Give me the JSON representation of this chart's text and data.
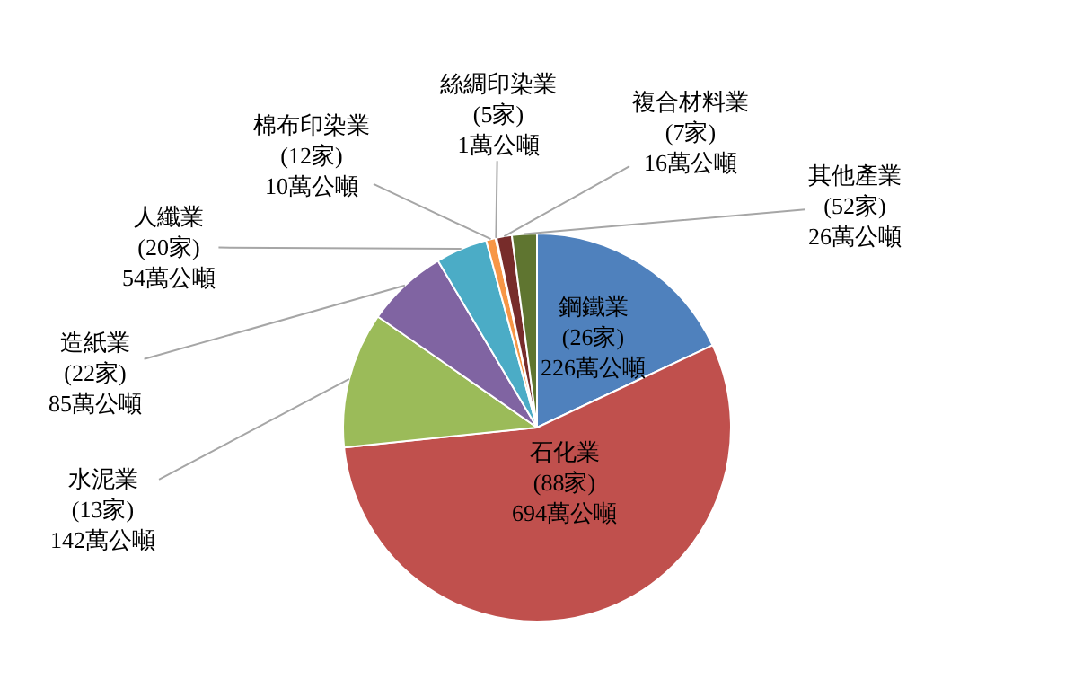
{
  "chart_data": {
    "type": "pie",
    "categories": [
      "鋼鐵業",
      "石化業",
      "水泥業",
      "造紙業",
      "人纖業",
      "棉布印染業",
      "絲綢印染業",
      "複合材料業",
      "其他產業"
    ],
    "values": [
      226,
      694,
      142,
      85,
      54,
      10,
      1,
      16,
      26
    ],
    "value_labels": [
      "(26家)\n226萬公噸",
      "(88家)\n694萬公噸",
      "(13家)\n142萬公噸",
      "(22家)\n85萬公噸",
      "(20家)\n54萬公噸",
      "(12家)\n10萬公噸",
      "(5家)\n1萬公噸",
      "(7家)\n16萬公噸",
      "(52家)\n26萬公噸"
    ],
    "colors": [
      "#4f81bd",
      "#c0504d",
      "#9bbb59",
      "#8064a2",
      "#4bacc6",
      "#f79646",
      "#2c4d75",
      "#772c2a",
      "#5f7530"
    ],
    "legend": false
  }
}
